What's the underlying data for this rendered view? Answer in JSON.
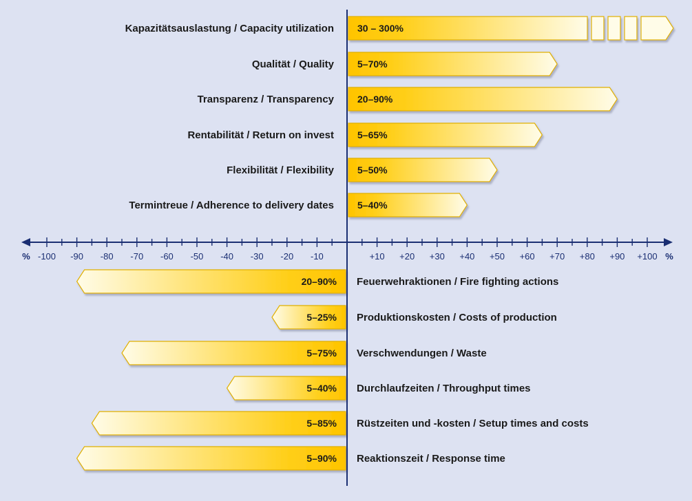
{
  "chart_data": {
    "type": "bar",
    "orientation": "horizontal",
    "title": "",
    "xlim": [
      -100,
      100
    ],
    "x_unit": "%",
    "x_ticks": [
      -100,
      -90,
      -80,
      -70,
      -60,
      -50,
      -40,
      -30,
      -20,
      -10,
      10,
      20,
      30,
      40,
      50,
      60,
      70,
      80,
      90,
      100
    ],
    "tick_labels": [
      "-100",
      "-90",
      "-80",
      "-70",
      "-60",
      "-50",
      "-40",
      "-30",
      "-20",
      "-10",
      "+10",
      "+20",
      "+30",
      "+40",
      "+50",
      "+60",
      "+70",
      "+80",
      "+90",
      "+100"
    ],
    "colors": {
      "axis": "#1a2e72",
      "bar_fill": "#ffc400",
      "bar_light": "#fffce8",
      "bar_outline": "#e0b000"
    },
    "increases": [
      {
        "label": "Kapazitätsauslastung / Capacity utilization",
        "range_label": "30 – 300%",
        "min": 30,
        "max": 300,
        "broken_axis": true
      },
      {
        "label": "Qualität / Quality",
        "range_label": "5–70%",
        "min": 5,
        "max": 70
      },
      {
        "label": "Transparenz / Transparency",
        "range_label": "20–90%",
        "min": 20,
        "max": 90
      },
      {
        "label": "Rentabilität / Return on invest",
        "range_label": "5–65%",
        "min": 5,
        "max": 65
      },
      {
        "label": "Flexibilität / Flexibility",
        "range_label": "5–50%",
        "min": 5,
        "max": 50
      },
      {
        "label": "Termintreue / Adherence to delivery dates",
        "range_label": "5–40%",
        "min": 5,
        "max": 40
      }
    ],
    "reductions": [
      {
        "label": "Feuerwehraktionen / Fire fighting actions",
        "range_label": "20–90%",
        "min": 20,
        "max": 90
      },
      {
        "label": "Produktionskosten / Costs of production",
        "range_label": "5–25%",
        "min": 5,
        "max": 25
      },
      {
        "label": "Verschwendungen / Waste",
        "range_label": "5–75%",
        "min": 5,
        "max": 75
      },
      {
        "label": "Durchlaufzeiten / Throughput times",
        "range_label": "5–40%",
        "min": 5,
        "max": 40
      },
      {
        "label": "Rüstzeiten und -kosten / Setup times and costs",
        "range_label": "5–85%",
        "min": 5,
        "max": 85
      },
      {
        "label": "Reaktionszeit / Response time",
        "range_label": "5–90%",
        "min": 5,
        "max": 90
      }
    ]
  }
}
